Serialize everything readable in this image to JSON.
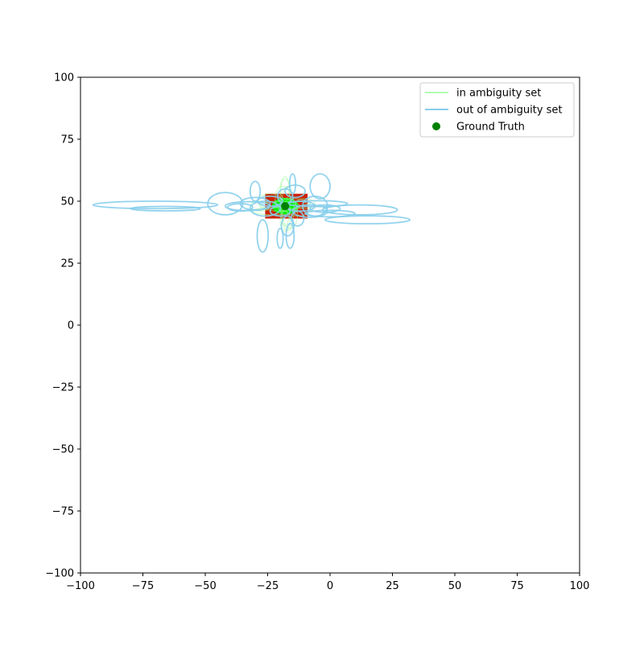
{
  "chart_data": {
    "type": "scatter",
    "title": "",
    "xlabel": "",
    "ylabel": "",
    "xlim": [
      -100,
      100
    ],
    "ylim": [
      -100,
      100
    ],
    "xticks": [
      -100,
      -75,
      -50,
      -25,
      0,
      25,
      50,
      75,
      100
    ],
    "yticks": [
      -100,
      -75,
      -50,
      -25,
      0,
      25,
      50,
      75,
      100
    ],
    "xtick_labels": [
      "−100",
      "−75",
      "−50",
      "−25",
      "0",
      "25",
      "50",
      "75",
      "100"
    ],
    "ytick_labels": [
      "−100",
      "−75",
      "−50",
      "−25",
      "0",
      "25",
      "50",
      "75",
      "100"
    ],
    "grid": false,
    "legend_position": "top-right",
    "legend": [
      {
        "label": "in ambiguity set",
        "color": "#98fb98",
        "marker": "line"
      },
      {
        "label": "out of ambiguity set",
        "color": "#87ceeb",
        "marker": "line"
      },
      {
        "label": "Ground Truth",
        "color": "#008000",
        "marker": "dot"
      }
    ],
    "ground_truth": {
      "x": -18,
      "y": 48,
      "color": "#008000"
    },
    "red_region": {
      "x_min": -26,
      "x_max": -9,
      "y_min": 43,
      "y_max": 53,
      "color": "#cc2200"
    },
    "green_center_ellipse": {
      "cx": -18,
      "cy": 48,
      "rx": 5,
      "ry": 3,
      "color": "#00ee00"
    },
    "series": [
      {
        "name": "in ambiguity set",
        "color": "#98fb98",
        "ellipses": [
          {
            "cx": -18,
            "cy": 50,
            "rx": 2,
            "ry": 10
          },
          {
            "cx": -17,
            "cy": 47,
            "rx": 2.5,
            "ry": 9
          },
          {
            "cx": -20,
            "cy": 48,
            "rx": 8,
            "ry": 2
          },
          {
            "cx": -15,
            "cy": 49,
            "rx": 7,
            "ry": 2
          },
          {
            "cx": -22,
            "cy": 46,
            "rx": 9,
            "ry": 1.5
          },
          {
            "cx": -19,
            "cy": 51,
            "rx": 3,
            "ry": 5
          },
          {
            "cx": -16,
            "cy": 45,
            "rx": 3,
            "ry": 6
          },
          {
            "cx": -24,
            "cy": 50,
            "rx": 5,
            "ry": 3
          },
          {
            "cx": -13,
            "cy": 47,
            "rx": 5,
            "ry": 3
          },
          {
            "cx": -18,
            "cy": 55,
            "rx": 2,
            "ry": 4
          },
          {
            "cx": -18,
            "cy": 42,
            "rx": 2,
            "ry": 4
          },
          {
            "cx": -28,
            "cy": 48,
            "rx": 4,
            "ry": 2
          },
          {
            "cx": -10,
            "cy": 49,
            "rx": 4,
            "ry": 2
          }
        ]
      },
      {
        "name": "out of ambiguity set",
        "color": "#87ceeb",
        "ellipses": [
          {
            "cx": -70,
            "cy": 48.5,
            "rx": 25,
            "ry": 1.5
          },
          {
            "cx": -66,
            "cy": 47,
            "rx": 14,
            "ry": 0.9
          },
          {
            "cx": -42,
            "cy": 49,
            "rx": 7,
            "ry": 4.5
          },
          {
            "cx": -4,
            "cy": 56,
            "rx": 4,
            "ry": 5
          },
          {
            "cx": 12,
            "cy": 46.5,
            "rx": 15,
            "ry": 2
          },
          {
            "cx": 15,
            "cy": 42.5,
            "rx": 17,
            "ry": 1.6
          },
          {
            "cx": 0,
            "cy": 45,
            "rx": 10,
            "ry": 1.3
          },
          {
            "cx": -5,
            "cy": 49,
            "rx": 12,
            "ry": 1.2
          },
          {
            "cx": -27,
            "cy": 36,
            "rx": 2.2,
            "ry": 6.5
          },
          {
            "cx": -20,
            "cy": 35,
            "rx": 1.2,
            "ry": 4
          },
          {
            "cx": -16,
            "cy": 36,
            "rx": 1.6,
            "ry": 5
          },
          {
            "cx": -17,
            "cy": 40,
            "rx": 2.5,
            "ry": 4
          },
          {
            "cx": -30,
            "cy": 54,
            "rx": 2,
            "ry": 4
          },
          {
            "cx": -15,
            "cy": 57,
            "rx": 1.2,
            "ry": 4
          },
          {
            "cx": -14,
            "cy": 54,
            "rx": 4,
            "ry": 2.5
          },
          {
            "cx": -33,
            "cy": 48,
            "rx": 9,
            "ry": 1.8
          },
          {
            "cx": -30,
            "cy": 49,
            "rx": 6,
            "ry": 2.5
          },
          {
            "cx": -26,
            "cy": 47,
            "rx": 6,
            "ry": 3
          },
          {
            "cx": -8,
            "cy": 46,
            "rx": 7,
            "ry": 2.5
          },
          {
            "cx": -6,
            "cy": 48,
            "rx": 5,
            "ry": 4
          },
          {
            "cx": -12,
            "cy": 48,
            "rx": 6,
            "ry": 2
          },
          {
            "cx": -20,
            "cy": 46,
            "rx": 4,
            "ry": 2
          },
          {
            "cx": -24,
            "cy": 50,
            "rx": 5,
            "ry": 2
          },
          {
            "cx": -13,
            "cy": 43,
            "rx": 2.5,
            "ry": 3
          },
          {
            "cx": -18,
            "cy": 52,
            "rx": 3,
            "ry": 3
          },
          {
            "cx": -36,
            "cy": 47.5,
            "rx": 5,
            "ry": 1.5
          },
          {
            "cx": -2,
            "cy": 47,
            "rx": 6,
            "ry": 1.5
          }
        ]
      }
    ]
  }
}
